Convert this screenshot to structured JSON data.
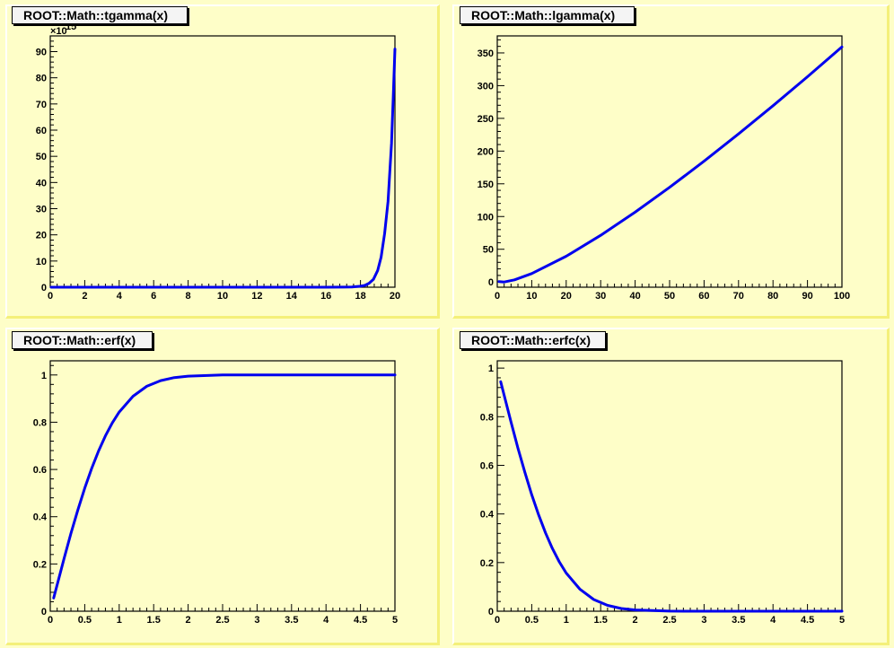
{
  "colors": {
    "canvas_bg": "#fefec8",
    "curve": "#0000ee",
    "frame": "#000000",
    "title_bg": "#f4f4f4",
    "pad_shadow": "#f4f07a"
  },
  "chart_data": [
    {
      "type": "line",
      "title": "ROOT::Math::tgamma(x)",
      "xlabel": "",
      "ylabel": "",
      "xlim": [
        0,
        20
      ],
      "ylim": [
        0,
        96
      ],
      "y_exponent_label": "×10",
      "y_exponent_power": "15",
      "xticks": [
        0,
        2,
        4,
        6,
        8,
        10,
        12,
        14,
        16,
        18,
        20
      ],
      "yticks": [
        0,
        10,
        20,
        30,
        40,
        50,
        60,
        70,
        80,
        90
      ],
      "grid": false,
      "series": [
        {
          "x": [
            0.05,
            4,
            8,
            12,
            16,
            17,
            17.5,
            18,
            18.25,
            18.5,
            18.75,
            19,
            19.2,
            19.4,
            19.6,
            19.8,
            19.9,
            20
          ],
          "y": [
            0.0,
            0.0,
            0.0,
            0.0,
            0.0,
            0.02,
            0.08,
            0.36,
            0.7,
            1.5,
            3.0,
            6.4,
            11.5,
            20.5,
            32.7,
            55.0,
            72.5,
            91.0
          ]
        }
      ]
    },
    {
      "type": "line",
      "title": "ROOT::Math::lgamma(x)",
      "xlabel": "",
      "ylabel": "",
      "xlim": [
        0,
        100
      ],
      "ylim": [
        -8,
        376
      ],
      "xticks": [
        0,
        10,
        20,
        30,
        40,
        50,
        60,
        70,
        80,
        90,
        100
      ],
      "yticks": [
        0,
        50,
        100,
        150,
        200,
        250,
        300,
        350
      ],
      "grid": false,
      "series": [
        {
          "x": [
            0.5,
            2,
            5,
            10,
            20,
            30,
            40,
            50,
            60,
            70,
            80,
            90,
            100
          ],
          "y": [
            0.6,
            0.0,
            3.2,
            12.8,
            39.3,
            71.3,
            106.6,
            144.6,
            184.5,
            226.2,
            269.3,
            313.6,
            359.1
          ]
        }
      ]
    },
    {
      "type": "line",
      "title": "ROOT::Math::erf(x)",
      "xlabel": "",
      "ylabel": "",
      "xlim": [
        0,
        5
      ],
      "ylim": [
        0,
        1.06
      ],
      "xticks": [
        0,
        0.5,
        1,
        1.5,
        2,
        2.5,
        3,
        3.5,
        4,
        4.5,
        5
      ],
      "yticks": [
        0,
        0.2,
        0.4,
        0.6,
        0.8,
        1
      ],
      "grid": false,
      "series": [
        {
          "x": [
            0.05,
            0.1,
            0.2,
            0.3,
            0.4,
            0.5,
            0.6,
            0.7,
            0.8,
            0.9,
            1.0,
            1.2,
            1.4,
            1.6,
            1.8,
            2.0,
            2.5,
            3,
            4,
            5
          ],
          "y": [
            0.056,
            0.112,
            0.223,
            0.329,
            0.428,
            0.521,
            0.604,
            0.678,
            0.742,
            0.797,
            0.843,
            0.91,
            0.952,
            0.976,
            0.989,
            0.995,
            1.0,
            1.0,
            1.0,
            1.0
          ]
        }
      ]
    },
    {
      "type": "line",
      "title": "ROOT::Math::erfc(x)",
      "xlabel": "",
      "ylabel": "",
      "xlim": [
        0,
        5
      ],
      "ylim": [
        0,
        1.03
      ],
      "xticks": [
        0,
        0.5,
        1,
        1.5,
        2,
        2.5,
        3,
        3.5,
        4,
        4.5,
        5
      ],
      "yticks": [
        0,
        0.2,
        0.4,
        0.6,
        0.8,
        1
      ],
      "grid": false,
      "series": [
        {
          "x": [
            0.05,
            0.1,
            0.2,
            0.3,
            0.4,
            0.5,
            0.6,
            0.7,
            0.8,
            0.9,
            1.0,
            1.2,
            1.4,
            1.6,
            1.8,
            2.0,
            2.5,
            3,
            4,
            5
          ],
          "y": [
            0.944,
            0.888,
            0.777,
            0.671,
            0.572,
            0.479,
            0.396,
            0.322,
            0.258,
            0.203,
            0.157,
            0.09,
            0.048,
            0.024,
            0.011,
            0.005,
            0.0004,
            0.0,
            0.0,
            0.0
          ]
        }
      ]
    }
  ]
}
